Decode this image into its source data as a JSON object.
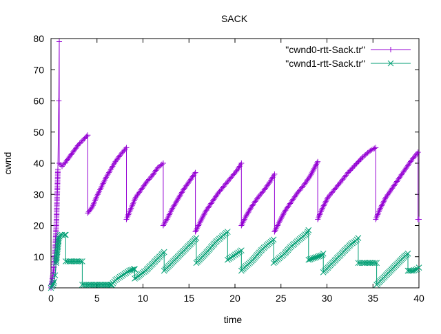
{
  "chart_data": {
    "type": "line",
    "title": "SACK",
    "xlabel": "time",
    "ylabel": "cwnd",
    "xlim": [
      0,
      40
    ],
    "ylim": [
      0,
      80
    ],
    "xticks": [
      0,
      5,
      10,
      15,
      20,
      25,
      30,
      35,
      40
    ],
    "yticks": [
      0,
      10,
      20,
      30,
      40,
      50,
      60,
      70,
      80
    ],
    "legend_position": "top-right",
    "grid": false,
    "series": [
      {
        "name": "\"cwnd0-rtt-Sack.tr\"",
        "color": "#9400d3",
        "marker": "plus",
        "x": [
          0.0,
          0.15,
          0.3,
          0.45,
          0.6,
          0.75,
          0.85,
          0.9,
          0.9,
          1.2,
          1.5,
          2.0,
          2.5,
          3.0,
          3.5,
          4.0,
          4.0,
          4.5,
          5.0,
          5.5,
          6.0,
          6.5,
          7.0,
          7.5,
          8.2,
          8.2,
          8.7,
          9.2,
          9.8,
          10.4,
          11.0,
          11.6,
          12.2,
          12.2,
          12.7,
          13.2,
          13.8,
          14.4,
          15.0,
          15.7,
          15.7,
          16.2,
          16.8,
          17.5,
          18.2,
          18.9,
          19.6,
          20.3,
          20.7,
          20.7,
          21.2,
          21.8,
          22.5,
          23.2,
          23.8,
          24.3,
          24.3,
          24.8,
          25.4,
          26.1,
          26.8,
          27.5,
          28.2,
          29.0,
          29.0,
          29.5,
          30.1,
          30.8,
          31.5,
          32.3,
          33.1,
          33.9,
          34.7,
          35.3,
          35.3,
          35.8,
          36.4,
          37.1,
          37.8,
          38.5,
          39.2,
          39.9,
          39.9,
          40.0
        ],
        "y": [
          0,
          3,
          6,
          12,
          22,
          38,
          60,
          79,
          40,
          39,
          40,
          42,
          44,
          46,
          47.5,
          49,
          24,
          26,
          29.5,
          32.5,
          35.5,
          38,
          40.5,
          42.5,
          45,
          22,
          25.5,
          29,
          31.5,
          34,
          36,
          38.5,
          40,
          20,
          22.5,
          25.5,
          28.5,
          31.5,
          34,
          37,
          18,
          21,
          24.5,
          27.5,
          30.5,
          33,
          35.5,
          38,
          40,
          20,
          23,
          26,
          29,
          31.5,
          34,
          36.5,
          18,
          21,
          24.5,
          27.5,
          30.5,
          33,
          36,
          40.5,
          22,
          25.5,
          29,
          31.5,
          34,
          37,
          39.5,
          42,
          44,
          45,
          22,
          25.5,
          29,
          32,
          35,
          38,
          41,
          43.5,
          22,
          22
        ]
      },
      {
        "name": "\"cwnd1-rtt-Sack.tr\"",
        "color": "#009e73",
        "marker": "cross",
        "x": [
          0.0,
          0.2,
          0.35,
          0.45,
          0.55,
          0.7,
          0.85,
          1.0,
          1.2,
          1.5,
          1.6,
          1.6,
          2.0,
          2.5,
          3.0,
          3.4,
          3.4,
          4.0,
          4.5,
          5.0,
          5.5,
          6.0,
          6.5,
          6.6,
          7.0,
          7.5,
          8.0,
          8.5,
          9.0,
          9.1,
          9.1,
          9.4,
          9.8,
          10.3,
          10.8,
          11.3,
          11.8,
          12.3,
          12.3,
          12.8,
          13.3,
          13.8,
          14.3,
          14.8,
          15.3,
          15.8,
          15.8,
          16.3,
          16.8,
          17.4,
          18.0,
          18.6,
          19.2,
          19.2,
          19.7,
          20.2,
          20.7,
          20.7,
          21.2,
          21.8,
          22.4,
          23.0,
          23.6,
          24.2,
          24.2,
          24.8,
          25.4,
          26.0,
          26.6,
          27.2,
          27.8,
          28.0,
          28.0,
          28.5,
          29.0,
          29.5,
          29.6,
          29.6,
          30.1,
          30.6,
          31.1,
          31.6,
          32.1,
          32.6,
          33.1,
          33.4,
          33.4,
          34.0,
          34.5,
          35.0,
          35.4,
          35.4,
          35.9,
          36.4,
          36.9,
          37.4,
          37.9,
          38.4,
          38.8,
          38.8,
          39.3,
          39.8,
          40.0
        ],
        "y": [
          0,
          1,
          2,
          4,
          8,
          12,
          16,
          17,
          17,
          17,
          17,
          8.5,
          8.5,
          8.5,
          8.5,
          8.5,
          1,
          1,
          1,
          1,
          1,
          1,
          1,
          1,
          2.5,
          3.5,
          4.5,
          5.5,
          6,
          6,
          3,
          3.5,
          4.5,
          5.5,
          7,
          8.5,
          10,
          11.5,
          5.5,
          7,
          8.5,
          10,
          11.5,
          13,
          14.5,
          16,
          8,
          9.5,
          11,
          13,
          15,
          16.5,
          18,
          9,
          10,
          11,
          12,
          5.5,
          7,
          8.5,
          10.5,
          12.5,
          14,
          15.5,
          8,
          9.5,
          11,
          13,
          14.5,
          16,
          17.5,
          18.5,
          9,
          9.5,
          10,
          10.5,
          11,
          5,
          6.5,
          8,
          9.5,
          11,
          12.5,
          14,
          15,
          16,
          8,
          8,
          8,
          8,
          8,
          1,
          2.5,
          4,
          5.5,
          7,
          8.5,
          10,
          11,
          5.5,
          5.5,
          6,
          6.5
        ]
      }
    ]
  }
}
